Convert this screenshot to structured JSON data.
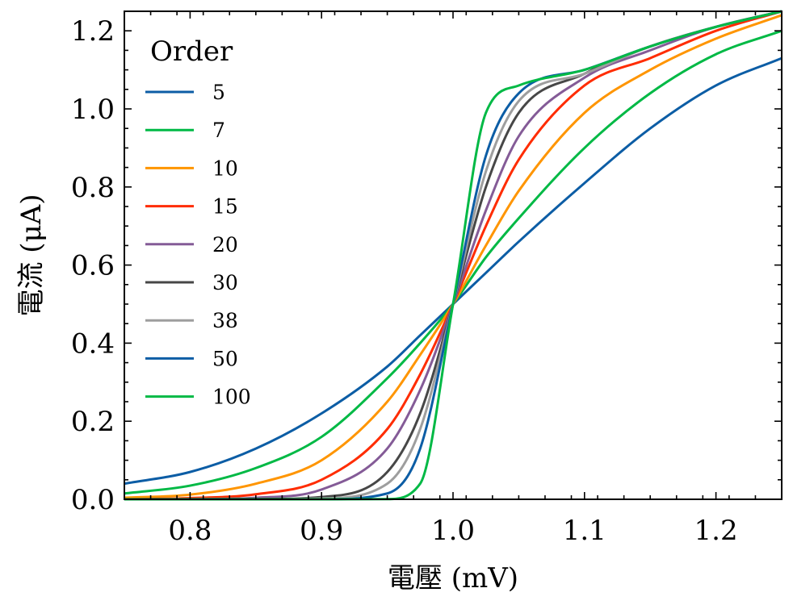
{
  "chart_data": {
    "type": "line",
    "xlabel": "電壓 (mV)",
    "ylabel": "電流 (μA)",
    "xlim": [
      0.75,
      1.25
    ],
    "ylim": [
      0.0,
      1.25
    ],
    "x_ticks": [
      "0.8",
      "0.9",
      "1.0",
      "1.1",
      "1.2"
    ],
    "y_ticks": [
      "0.0",
      "0.2",
      "0.4",
      "0.6",
      "0.8",
      "1.0",
      "1.2"
    ],
    "grid": false,
    "legend": {
      "title": "Order",
      "placement": "top-left"
    },
    "x": [
      0.75,
      0.8,
      0.85,
      0.9,
      0.95,
      0.975,
      1.0,
      1.025,
      1.05,
      1.1,
      1.15,
      1.2,
      1.25
    ],
    "series": [
      {
        "name": "5",
        "color": "#0C5DA5",
        "values": [
          0.04,
          0.07,
          0.13,
          0.22,
          0.34,
          0.42,
          0.5,
          0.58,
          0.66,
          0.81,
          0.95,
          1.06,
          1.13
        ]
      },
      {
        "name": "7",
        "color": "#00B945",
        "values": [
          0.015,
          0.035,
          0.08,
          0.16,
          0.31,
          0.4,
          0.5,
          0.62,
          0.72,
          0.9,
          1.04,
          1.14,
          1.2
        ]
      },
      {
        "name": "10",
        "color": "#FF9500",
        "values": [
          0.004,
          0.012,
          0.04,
          0.1,
          0.25,
          0.37,
          0.5,
          0.65,
          0.79,
          0.99,
          1.1,
          1.18,
          1.24
        ]
      },
      {
        "name": "15",
        "color": "#FF2C00",
        "values": [
          0.0005,
          0.003,
          0.013,
          0.05,
          0.18,
          0.32,
          0.5,
          0.7,
          0.87,
          1.06,
          1.13,
          1.2,
          1.25
        ]
      },
      {
        "name": "20",
        "color": "#845B97",
        "values": [
          0.0,
          0.0005,
          0.004,
          0.025,
          0.13,
          0.28,
          0.5,
          0.74,
          0.93,
          1.08,
          1.15,
          1.21,
          1.25
        ]
      },
      {
        "name": "30",
        "color": "#474747",
        "values": [
          0.0,
          0.0,
          0.0005,
          0.006,
          0.07,
          0.22,
          0.5,
          0.8,
          0.99,
          1.09,
          1.16,
          1.21,
          1.25
        ]
      },
      {
        "name": "38",
        "color": "#9E9E9E",
        "values": [
          0.0,
          0.0,
          0.0,
          0.002,
          0.04,
          0.18,
          0.5,
          0.84,
          1.02,
          1.09,
          1.16,
          1.21,
          1.25
        ]
      },
      {
        "name": "50",
        "color": "#0C5DA5",
        "values": [
          0.0,
          0.0,
          0.0,
          0.0,
          0.015,
          0.13,
          0.5,
          0.88,
          1.04,
          1.1,
          1.16,
          1.21,
          1.25
        ]
      },
      {
        "name": "100",
        "color": "#00B945",
        "values": [
          0.0,
          0.0,
          0.0,
          0.0,
          0.0005,
          0.04,
          0.5,
          0.99,
          1.06,
          1.1,
          1.16,
          1.21,
          1.25
        ]
      }
    ]
  }
}
